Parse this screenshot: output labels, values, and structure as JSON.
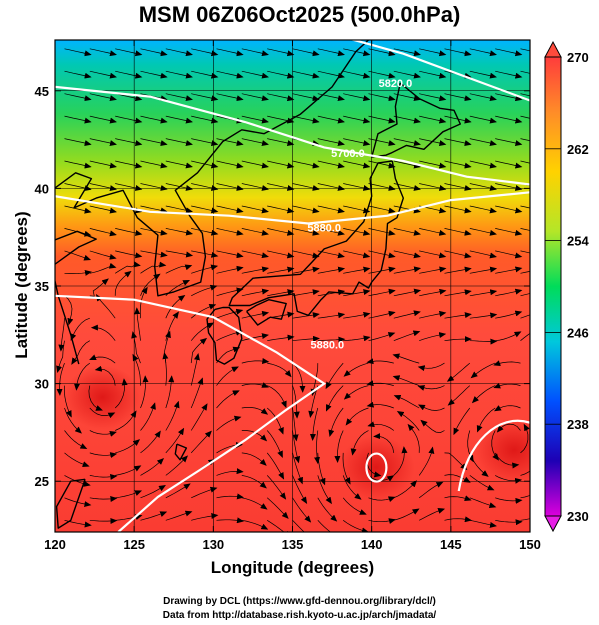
{
  "title": "MSM 06Z06Oct2025 (500.0hPa)",
  "xlabel": "Longitude (degrees)",
  "ylabel": "Latitude  (degrees)",
  "x_ticks": [
    "120",
    "125",
    "130",
    "135",
    "140",
    "145",
    "150"
  ],
  "y_ticks": [
    "25",
    "30",
    "35",
    "40",
    "45"
  ],
  "colorbar_ticks": [
    "270",
    "262",
    "254",
    "246",
    "238",
    "230"
  ],
  "contour_labels": [
    "5820.0",
    "5700.0",
    "5880.0",
    "5880.0"
  ],
  "credits": {
    "line1": "Drawing by DCL (https://www.gfd-dennou.org/library/dcl/)",
    "line2": "Data from http://database.rish.kyoto-u.ac.jp/arch/jmadata/"
  },
  "chart_data": {
    "type": "heatmap",
    "title": "MSM 06Z06Oct2025 (500.0hPa)",
    "xlabel": "Longitude (degrees)",
    "ylabel": "Latitude  (degrees)",
    "xlim": [
      120,
      150
    ],
    "ylim": [
      22.4,
      47.6
    ],
    "color_range": [
      230,
      270
    ],
    "colorbar_ticks": [
      270,
      262,
      254,
      246,
      238,
      230
    ],
    "colormap": [
      "#cc00cc",
      "#0000cc",
      "#00b4ff",
      "#00dc5a",
      "#ffff00",
      "#ffa000",
      "#ff4040"
    ],
    "overlays": [
      "streamlines",
      "geopotential height contours",
      "coastlines",
      "grid"
    ],
    "contours": [
      {
        "label": "5700.0",
        "points": [
          [
            120,
            45.2
          ],
          [
            126,
            44.7
          ],
          [
            132,
            43.4
          ],
          [
            137,
            42.1
          ],
          [
            142,
            41.4
          ],
          [
            146,
            40.6
          ],
          [
            150,
            40.2
          ]
        ]
      },
      {
        "label": "5820.0",
        "points": [
          [
            134,
            48.2
          ],
          [
            138,
            47.8
          ],
          [
            142,
            46.9
          ],
          [
            146,
            45.7
          ],
          [
            150,
            44.5
          ]
        ]
      },
      {
        "label": "5880.0",
        "points": [
          [
            120,
            39.6
          ],
          [
            126,
            38.8
          ],
          [
            131,
            38.6
          ],
          [
            136,
            38.2
          ],
          [
            141,
            38.6
          ],
          [
            145,
            39.4
          ],
          [
            150,
            39.8
          ]
        ]
      },
      {
        "label": "5880.0",
        "points": [
          [
            120,
            34.5
          ],
          [
            125,
            34.3
          ],
          [
            130,
            33.4
          ],
          [
            134,
            31.6
          ],
          [
            137,
            30.0
          ],
          [
            134.5,
            28.6
          ],
          [
            132,
            27.1
          ],
          [
            129,
            25.5
          ],
          [
            126.5,
            24.2
          ],
          [
            124,
            22.4
          ]
        ]
      }
    ],
    "warm_cores": [
      [
        123,
        29.3
      ],
      [
        140.3,
        25.7
      ],
      [
        149,
        26.6
      ]
    ]
  }
}
